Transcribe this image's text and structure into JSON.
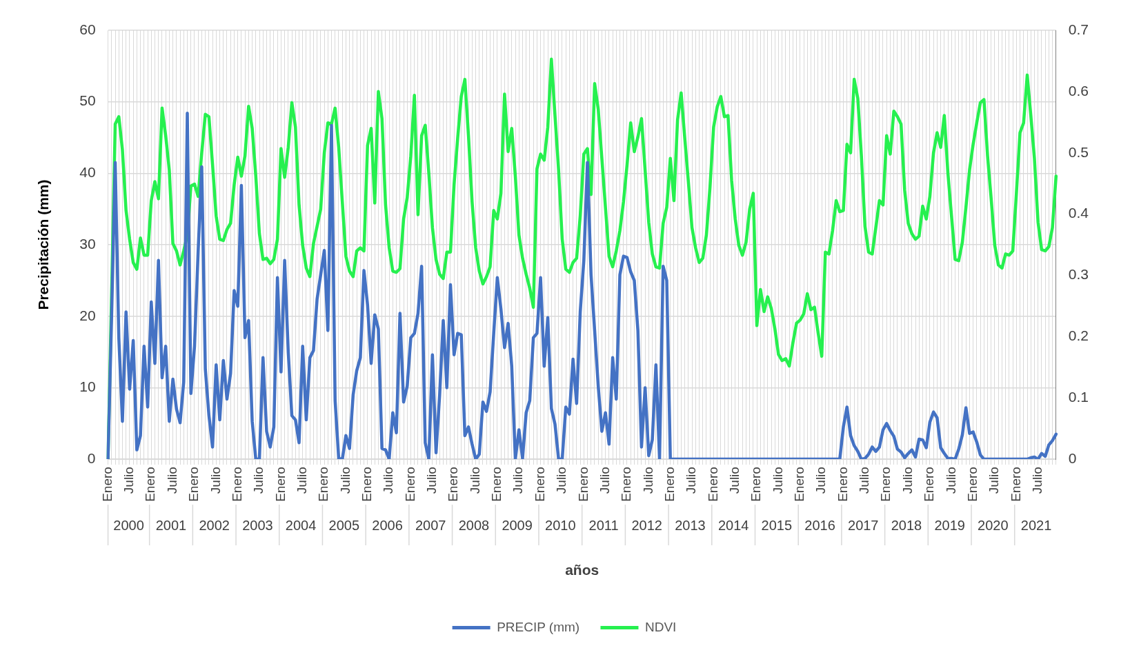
{
  "chart_data": {
    "type": "line",
    "xlabel": "años",
    "ylabel": "Precipitación (mm)",
    "categories": [
      "Enero",
      null,
      null,
      null,
      null,
      null,
      "Julio",
      null,
      null,
      null,
      null,
      null,
      "Enero",
      null,
      null,
      null,
      null,
      null,
      "Julio",
      null,
      null,
      null,
      null,
      null,
      "Enero",
      null,
      null,
      null,
      null,
      null,
      "Julio",
      null,
      null,
      null,
      null,
      null,
      "Enero",
      null,
      null,
      null,
      null,
      null,
      "Julio",
      null,
      null,
      null,
      null,
      null,
      "Enero",
      null,
      null,
      null,
      null,
      null,
      "Julio",
      null,
      null,
      null,
      null,
      null,
      "Enero",
      null,
      null,
      null,
      null,
      null,
      "Julio",
      null,
      null,
      null,
      null,
      null,
      "Enero",
      null,
      null,
      null,
      null,
      null,
      "Julio",
      null,
      null,
      null,
      null,
      null,
      "Enero",
      null,
      null,
      null,
      null,
      null,
      "Julio",
      null,
      null,
      null,
      null,
      null,
      "Enero",
      null,
      null,
      null,
      null,
      null,
      "Julio",
      null,
      null,
      null,
      null,
      null,
      "Enero",
      null,
      null,
      null,
      null,
      null,
      "Julio",
      null,
      null,
      null,
      null,
      null,
      "Enero",
      null,
      null,
      null,
      null,
      null,
      "Julio",
      null,
      null,
      null,
      null,
      null,
      "Enero",
      null,
      null,
      null,
      null,
      null,
      "Julio",
      null,
      null,
      null,
      null,
      null,
      "Enero",
      null,
      null,
      null,
      null,
      null,
      "Julio",
      null,
      null,
      null,
      null,
      null,
      "Enero",
      null,
      null,
      null,
      null,
      null,
      "Julio",
      null,
      null,
      null,
      null,
      null,
      "Enero",
      null,
      null,
      null,
      null,
      null,
      "Julio",
      null,
      null,
      null,
      null,
      null,
      "Enero",
      null,
      null,
      null,
      null,
      null,
      "Julio",
      null,
      null,
      null,
      null,
      null,
      "Enero",
      null,
      null,
      null,
      null,
      null,
      "Julio",
      null,
      null,
      null,
      null,
      null,
      "Enero",
      null,
      null,
      null,
      null,
      null,
      "Julio",
      null,
      null,
      null,
      null,
      null,
      "Enero",
      null,
      null,
      null,
      null,
      null,
      "Julio",
      null,
      null,
      null,
      null,
      null,
      "Enero",
      null,
      null,
      null,
      null,
      null,
      "Julio",
      null,
      null,
      null,
      null,
      null,
      "Enero",
      null,
      null,
      null,
      null,
      null,
      "Julio",
      null,
      null,
      null,
      null,
      null,
      "Enero",
      null,
      null,
      null,
      null,
      null,
      "Julio",
      null,
      null,
      null,
      null,
      null
    ],
    "annotations": [
      "2000",
      "2001",
      "2002",
      "2003",
      "2004",
      "2005",
      "2006",
      "2007",
      "2008",
      "2009",
      "2010",
      "2011",
      "2012",
      "2013",
      "2014",
      "2015",
      "2016",
      "2017",
      "2018",
      "2019",
      "2020",
      "2021"
    ],
    "series": [
      {
        "name": "PRECIP (mm)",
        "color": "#4472c4",
        "values": [
          0,
          20,
          41.5,
          17,
          5.3,
          20.6,
          9.8,
          16.6,
          1.3,
          3.3,
          15.8,
          7.3,
          22,
          13.4,
          27.8,
          11.4,
          15.8,
          5.3,
          11.2,
          7,
          5.1,
          10.8,
          48.4,
          9.2,
          15.8,
          29,
          40.9,
          12.6,
          6.1,
          1.7,
          13.2,
          5.5,
          13.8,
          8.4,
          12,
          23.6,
          21.4,
          38.3,
          17,
          19.4,
          5.3,
          0,
          0,
          14.2,
          3.9,
          1.7,
          4.5,
          25.4,
          12.2,
          27.8,
          15,
          6.1,
          5.5,
          2.3,
          15.8,
          5.5,
          14.2,
          15.2,
          22.4,
          25.8,
          29.2,
          18,
          46.7,
          8.2,
          0.1,
          0,
          3.3,
          1.5,
          9,
          12.4,
          14.2,
          26.4,
          21.6,
          13.4,
          20.2,
          18.2,
          1.5,
          1.3,
          0,
          6.5,
          3.7,
          20.4,
          8,
          10.2,
          17,
          17.6,
          20.4,
          27,
          2.3,
          0,
          14.6,
          0.9,
          9,
          19.4,
          10,
          24.4,
          14.6,
          17.6,
          17.4,
          3.3,
          4.5,
          2.1,
          0,
          0.7,
          8,
          6.7,
          9.4,
          17.6,
          25.4,
          21,
          15.6,
          19,
          13,
          0,
          4.1,
          0.1,
          6.5,
          8.2,
          17,
          17.6,
          25.4,
          13,
          19.8,
          7.1,
          4.9,
          0,
          0,
          7.3,
          6.3,
          14,
          7.8,
          20.6,
          27.8,
          41.5,
          25.8,
          18,
          10.2,
          3.9,
          6.5,
          2.1,
          14.2,
          8.4,
          25.8,
          28.4,
          28.2,
          26.2,
          25,
          18,
          1.7,
          10,
          0.5,
          2.7,
          13.2,
          0,
          27,
          25,
          0,
          0,
          0,
          0,
          0,
          0,
          0,
          0,
          0,
          0,
          0,
          0,
          0,
          0,
          0,
          0,
          0,
          0,
          0,
          0,
          0,
          0,
          0,
          0,
          0,
          0,
          0,
          0,
          0,
          0,
          0,
          0,
          0,
          0,
          0,
          0,
          0,
          0,
          0,
          0,
          0,
          0,
          0,
          0,
          0,
          0,
          0,
          0,
          4.5,
          7.3,
          3.3,
          1.9,
          1.1,
          0,
          0.1,
          0.7,
          1.7,
          1.1,
          1.7,
          4.1,
          5,
          4,
          3.2,
          1.4,
          1,
          0.2,
          0.8,
          1.3,
          0.3,
          2.8,
          2.7,
          1.6,
          5.2,
          6.6,
          5.8,
          1.6,
          0.8,
          0.1,
          0.1,
          0,
          1.4,
          3.4,
          7.2,
          3.6,
          3.8,
          2.4,
          0.6,
          0,
          0,
          0,
          0,
          0,
          0,
          0,
          0,
          0,
          0,
          0,
          0,
          0,
          0.2,
          0.3,
          0,
          0.8,
          0.4,
          2,
          2.6,
          3.5
        ]
      },
      {
        "name": "NDVI",
        "color": "#26f04f",
        "axis": "y2",
        "values": [
          0,
          0.27,
          0.547,
          0.559,
          0.505,
          0.406,
          0.359,
          0.321,
          0.31,
          0.361,
          0.333,
          0.333,
          0.422,
          0.453,
          0.425,
          0.573,
          0.528,
          0.472,
          0.352,
          0.34,
          0.317,
          0.34,
          0.366,
          0.446,
          0.449,
          0.429,
          0.5,
          0.563,
          0.559,
          0.481,
          0.397,
          0.359,
          0.357,
          0.375,
          0.385,
          0.448,
          0.493,
          0.462,
          0.495,
          0.576,
          0.54,
          0.462,
          0.368,
          0.326,
          0.328,
          0.319,
          0.326,
          0.359,
          0.507,
          0.46,
          0.509,
          0.582,
          0.542,
          0.415,
          0.349,
          0.312,
          0.298,
          0.352,
          0.38,
          0.408,
          0.5,
          0.549,
          0.547,
          0.573,
          0.509,
          0.42,
          0.331,
          0.307,
          0.298,
          0.34,
          0.345,
          0.34,
          0.512,
          0.54,
          0.418,
          0.6,
          0.556,
          0.415,
          0.345,
          0.307,
          0.305,
          0.311,
          0.392,
          0.427,
          0.495,
          0.594,
          0.399,
          0.528,
          0.545,
          0.467,
          0.378,
          0.326,
          0.302,
          0.295,
          0.338,
          0.338,
          0.448,
          0.524,
          0.592,
          0.62,
          0.528,
          0.42,
          0.345,
          0.307,
          0.286,
          0.298,
          0.314,
          0.406,
          0.392,
          0.434,
          0.596,
          0.502,
          0.54,
          0.462,
          0.366,
          0.328,
          0.302,
          0.279,
          0.248,
          0.474,
          0.498,
          0.488,
          0.542,
          0.653,
          0.561,
          0.472,
          0.359,
          0.31,
          0.305,
          0.321,
          0.328,
          0.397,
          0.498,
          0.507,
          0.432,
          0.613,
          0.571,
          0.491,
          0.411,
          0.331,
          0.314,
          0.34,
          0.373,
          0.42,
          0.481,
          0.549,
          0.502,
          0.526,
          0.556,
          0.472,
          0.387,
          0.335,
          0.314,
          0.312,
          0.385,
          0.411,
          0.491,
          0.422,
          0.554,
          0.598,
          0.524,
          0.453,
          0.378,
          0.345,
          0.321,
          0.328,
          0.366,
          0.444,
          0.542,
          0.575,
          0.592,
          0.559,
          0.561,
          0.455,
          0.392,
          0.349,
          0.333,
          0.354,
          0.408,
          0.434,
          0.218,
          0.277,
          0.241,
          0.265,
          0.246,
          0.213,
          0.171,
          0.161,
          0.164,
          0.152,
          0.19,
          0.222,
          0.227,
          0.237,
          0.27,
          0.244,
          0.248,
          0.206,
          0.168,
          0.338,
          0.335,
          0.373,
          0.422,
          0.404,
          0.406,
          0.514,
          0.5,
          0.62,
          0.589,
          0.495,
          0.38,
          0.338,
          0.335,
          0.378,
          0.422,
          0.415,
          0.528,
          0.498,
          0.568,
          0.559,
          0.547,
          0.439,
          0.385,
          0.368,
          0.359,
          0.364,
          0.413,
          0.392,
          0.429,
          0.5,
          0.533,
          0.509,
          0.561,
          0.467,
          0.397,
          0.326,
          0.324,
          0.354,
          0.411,
          0.472,
          0.514,
          0.549,
          0.582,
          0.587,
          0.495,
          0.425,
          0.349,
          0.317,
          0.312,
          0.335,
          0.333,
          0.34,
          0.434,
          0.533,
          0.549,
          0.627,
          0.561,
          0.491,
          0.387,
          0.342,
          0.34,
          0.347,
          0.378,
          0.462
        ]
      }
    ],
    "ylim": [
      0,
      60
    ],
    "yticks": [
      0,
      10,
      20,
      30,
      40,
      50,
      60
    ],
    "y2lim": [
      0,
      0.7
    ],
    "y2ticks": [
      0,
      0.1,
      0.2,
      0.3,
      0.4,
      0.5,
      0.6,
      0.7
    ],
    "grid": true,
    "legend": "bottom",
    "marker": "none"
  }
}
